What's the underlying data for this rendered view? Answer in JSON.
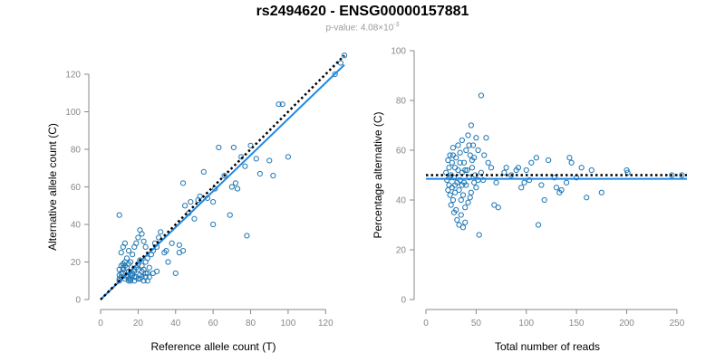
{
  "header": {
    "title": "rs2494620 - ENSG00000157881",
    "pvalue_label": "p-value: 4.08×10",
    "pvalue_exp": "-3"
  },
  "colors": {
    "points": "#1f77b4",
    "fit": "#1e88e5",
    "reference": "#000000"
  },
  "chart_data": [
    {
      "type": "scatter",
      "xlabel": "Reference allele count (T)",
      "ylabel": "Alternative allele count (C)",
      "xlim": [
        0,
        130
      ],
      "ylim": [
        0,
        120
      ],
      "xticks": [
        0,
        20,
        40,
        60,
        80,
        100,
        120
      ],
      "yticks": [
        0,
        20,
        40,
        60,
        80,
        100,
        120
      ],
      "fit_line": {
        "x": [
          0,
          130
        ],
        "y": [
          0,
          125
        ],
        "style": "solid"
      },
      "reference_line": {
        "x": [
          0,
          130
        ],
        "y": [
          0,
          130
        ],
        "style": "dotted"
      },
      "points": [
        [
          10,
          45
        ],
        [
          10,
          10
        ],
        [
          11,
          12
        ],
        [
          12,
          14
        ],
        [
          10,
          16
        ],
        [
          11,
          18
        ],
        [
          12,
          19
        ],
        [
          13,
          11
        ],
        [
          14,
          13
        ],
        [
          15,
          15
        ],
        [
          12,
          17
        ],
        [
          13,
          20
        ],
        [
          14,
          12
        ],
        [
          15,
          11
        ],
        [
          16,
          10
        ],
        [
          17,
          14
        ],
        [
          18,
          16
        ],
        [
          19,
          12
        ],
        [
          20,
          11
        ],
        [
          21,
          13
        ],
        [
          22,
          15
        ],
        [
          23,
          10
        ],
        [
          24,
          12
        ],
        [
          25,
          14
        ],
        [
          11,
          25
        ],
        [
          12,
          28
        ],
        [
          13,
          30
        ],
        [
          14,
          22
        ],
        [
          15,
          26
        ],
        [
          16,
          20
        ],
        [
          17,
          24
        ],
        [
          18,
          28
        ],
        [
          19,
          30
        ],
        [
          20,
          33
        ],
        [
          21,
          37
        ],
        [
          22,
          35
        ],
        [
          23,
          31
        ],
        [
          24,
          28
        ],
        [
          18,
          15
        ],
        [
          19,
          17
        ],
        [
          20,
          19
        ],
        [
          21,
          21
        ],
        [
          22,
          18
        ],
        [
          23,
          16
        ],
        [
          24,
          20
        ],
        [
          25,
          22
        ],
        [
          16,
          11
        ],
        [
          17,
          13
        ],
        [
          18,
          12
        ],
        [
          20,
          16
        ],
        [
          22,
          12
        ],
        [
          24,
          14
        ],
        [
          26,
          17
        ],
        [
          27,
          24
        ],
        [
          28,
          26
        ],
        [
          29,
          30
        ],
        [
          30,
          28
        ],
        [
          31,
          33
        ],
        [
          32,
          36
        ],
        [
          34,
          25
        ],
        [
          30,
          15
        ],
        [
          28,
          14
        ],
        [
          10,
          11
        ],
        [
          11,
          14
        ],
        [
          12,
          16
        ],
        [
          13,
          18
        ],
        [
          14,
          17
        ],
        [
          15,
          19
        ],
        [
          16,
          13
        ],
        [
          21,
          11
        ],
        [
          35,
          26
        ],
        [
          38,
          30
        ],
        [
          40,
          14
        ],
        [
          42,
          25
        ],
        [
          44,
          26
        ],
        [
          45,
          50
        ],
        [
          44,
          62
        ],
        [
          47,
          46
        ],
        [
          48,
          52
        ],
        [
          50,
          43
        ],
        [
          52,
          53
        ],
        [
          53,
          55
        ],
        [
          55,
          68
        ],
        [
          57,
          54
        ],
        [
          60,
          52
        ],
        [
          61,
          59
        ],
        [
          63,
          81
        ],
        [
          66,
          66
        ],
        [
          69,
          45
        ],
        [
          70,
          60
        ],
        [
          71,
          81
        ],
        [
          72,
          62
        ],
        [
          73,
          59
        ],
        [
          75,
          76
        ],
        [
          77,
          71
        ],
        [
          78,
          34
        ],
        [
          80,
          82
        ],
        [
          83,
          75
        ],
        [
          85,
          67
        ],
        [
          90,
          74
        ],
        [
          92,
          66
        ],
        [
          95,
          104
        ],
        [
          97,
          104
        ],
        [
          100,
          76
        ],
        [
          125,
          120
        ],
        [
          130,
          130
        ],
        [
          128,
          126
        ],
        [
          60,
          40
        ],
        [
          36,
          20
        ],
        [
          42,
          29
        ],
        [
          10,
          13
        ],
        [
          15,
          10
        ],
        [
          18,
          10
        ],
        [
          25,
          10
        ],
        [
          26,
          12
        ]
      ]
    },
    {
      "type": "scatter",
      "xlabel": "Total number of reads",
      "ylabel": "Percentage alternative (C)",
      "xlim": [
        0,
        260
      ],
      "ylim": [
        0,
        100
      ],
      "xticks": [
        0,
        50,
        100,
        150,
        200,
        250
      ],
      "yticks": [
        0,
        20,
        40,
        60,
        80,
        100
      ],
      "fit_line": {
        "x": [
          0,
          260
        ],
        "y": [
          48.5,
          48.5
        ],
        "style": "solid"
      },
      "reference_line": {
        "x": [
          0,
          260
        ],
        "y": [
          50,
          50
        ],
        "style": "dotted"
      },
      "points": [
        [
          20,
          51
        ],
        [
          21,
          48
        ],
        [
          22,
          56
        ],
        [
          22,
          44
        ],
        [
          23,
          53
        ],
        [
          23,
          46
        ],
        [
          24,
          58
        ],
        [
          24,
          42
        ],
        [
          25,
          50
        ],
        [
          25,
          38
        ],
        [
          26,
          55
        ],
        [
          26,
          45
        ],
        [
          27,
          61
        ],
        [
          27,
          40
        ],
        [
          28,
          49
        ],
        [
          28,
          35
        ],
        [
          29,
          53
        ],
        [
          29,
          43
        ],
        [
          30,
          57
        ],
        [
          30,
          36
        ],
        [
          31,
          47
        ],
        [
          31,
          32
        ],
        [
          32,
          52
        ],
        [
          32,
          62
        ],
        [
          33,
          44
        ],
        [
          33,
          30
        ],
        [
          34,
          59
        ],
        [
          34,
          48
        ],
        [
          35,
          40
        ],
        [
          35,
          34
        ],
        [
          36,
          64
        ],
        [
          36,
          51
        ],
        [
          37,
          42
        ],
        [
          37,
          29
        ],
        [
          38,
          55
        ],
        [
          38,
          47
        ],
        [
          39,
          37
        ],
        [
          39,
          31
        ],
        [
          40,
          60
        ],
        [
          40,
          46
        ],
        [
          41,
          52
        ],
        [
          42,
          66
        ],
        [
          42,
          39
        ],
        [
          43,
          49
        ],
        [
          44,
          58
        ],
        [
          45,
          70
        ],
        [
          45,
          43
        ],
        [
          46,
          53
        ],
        [
          47,
          62
        ],
        [
          48,
          57
        ],
        [
          48,
          47
        ],
        [
          50,
          65
        ],
        [
          50,
          45
        ],
        [
          52,
          60
        ],
        [
          53,
          26
        ],
        [
          55,
          82
        ],
        [
          55,
          51
        ],
        [
          57,
          48
        ],
        [
          58,
          58
        ],
        [
          60,
          65
        ],
        [
          62,
          55
        ],
        [
          65,
          53
        ],
        [
          68,
          38
        ],
        [
          70,
          47
        ],
        [
          72,
          37
        ],
        [
          78,
          51
        ],
        [
          80,
          53
        ],
        [
          85,
          50
        ],
        [
          90,
          52
        ],
        [
          92,
          53
        ],
        [
          95,
          45
        ],
        [
          98,
          47
        ],
        [
          100,
          52
        ],
        [
          103,
          48
        ],
        [
          105,
          55
        ],
        [
          110,
          57
        ],
        [
          112,
          30
        ],
        [
          115,
          46
        ],
        [
          118,
          40
        ],
        [
          122,
          56
        ],
        [
          128,
          49
        ],
        [
          130,
          45
        ],
        [
          133,
          43
        ],
        [
          135,
          44
        ],
        [
          140,
          47
        ],
        [
          143,
          57
        ],
        [
          145,
          55
        ],
        [
          150,
          49
        ],
        [
          155,
          53
        ],
        [
          160,
          41
        ],
        [
          165,
          52
        ],
        [
          175,
          43
        ],
        [
          200,
          52
        ],
        [
          201,
          51
        ],
        [
          245,
          50
        ],
        [
          255,
          50
        ],
        [
          36,
          46
        ],
        [
          44,
          41
        ],
        [
          49,
          50
        ],
        [
          27,
          58
        ],
        [
          34,
          55
        ],
        [
          39,
          52
        ],
        [
          43,
          62
        ],
        [
          46,
          56
        ],
        [
          52,
          48
        ],
        [
          24,
          49
        ],
        [
          29,
          46
        ]
      ]
    }
  ]
}
